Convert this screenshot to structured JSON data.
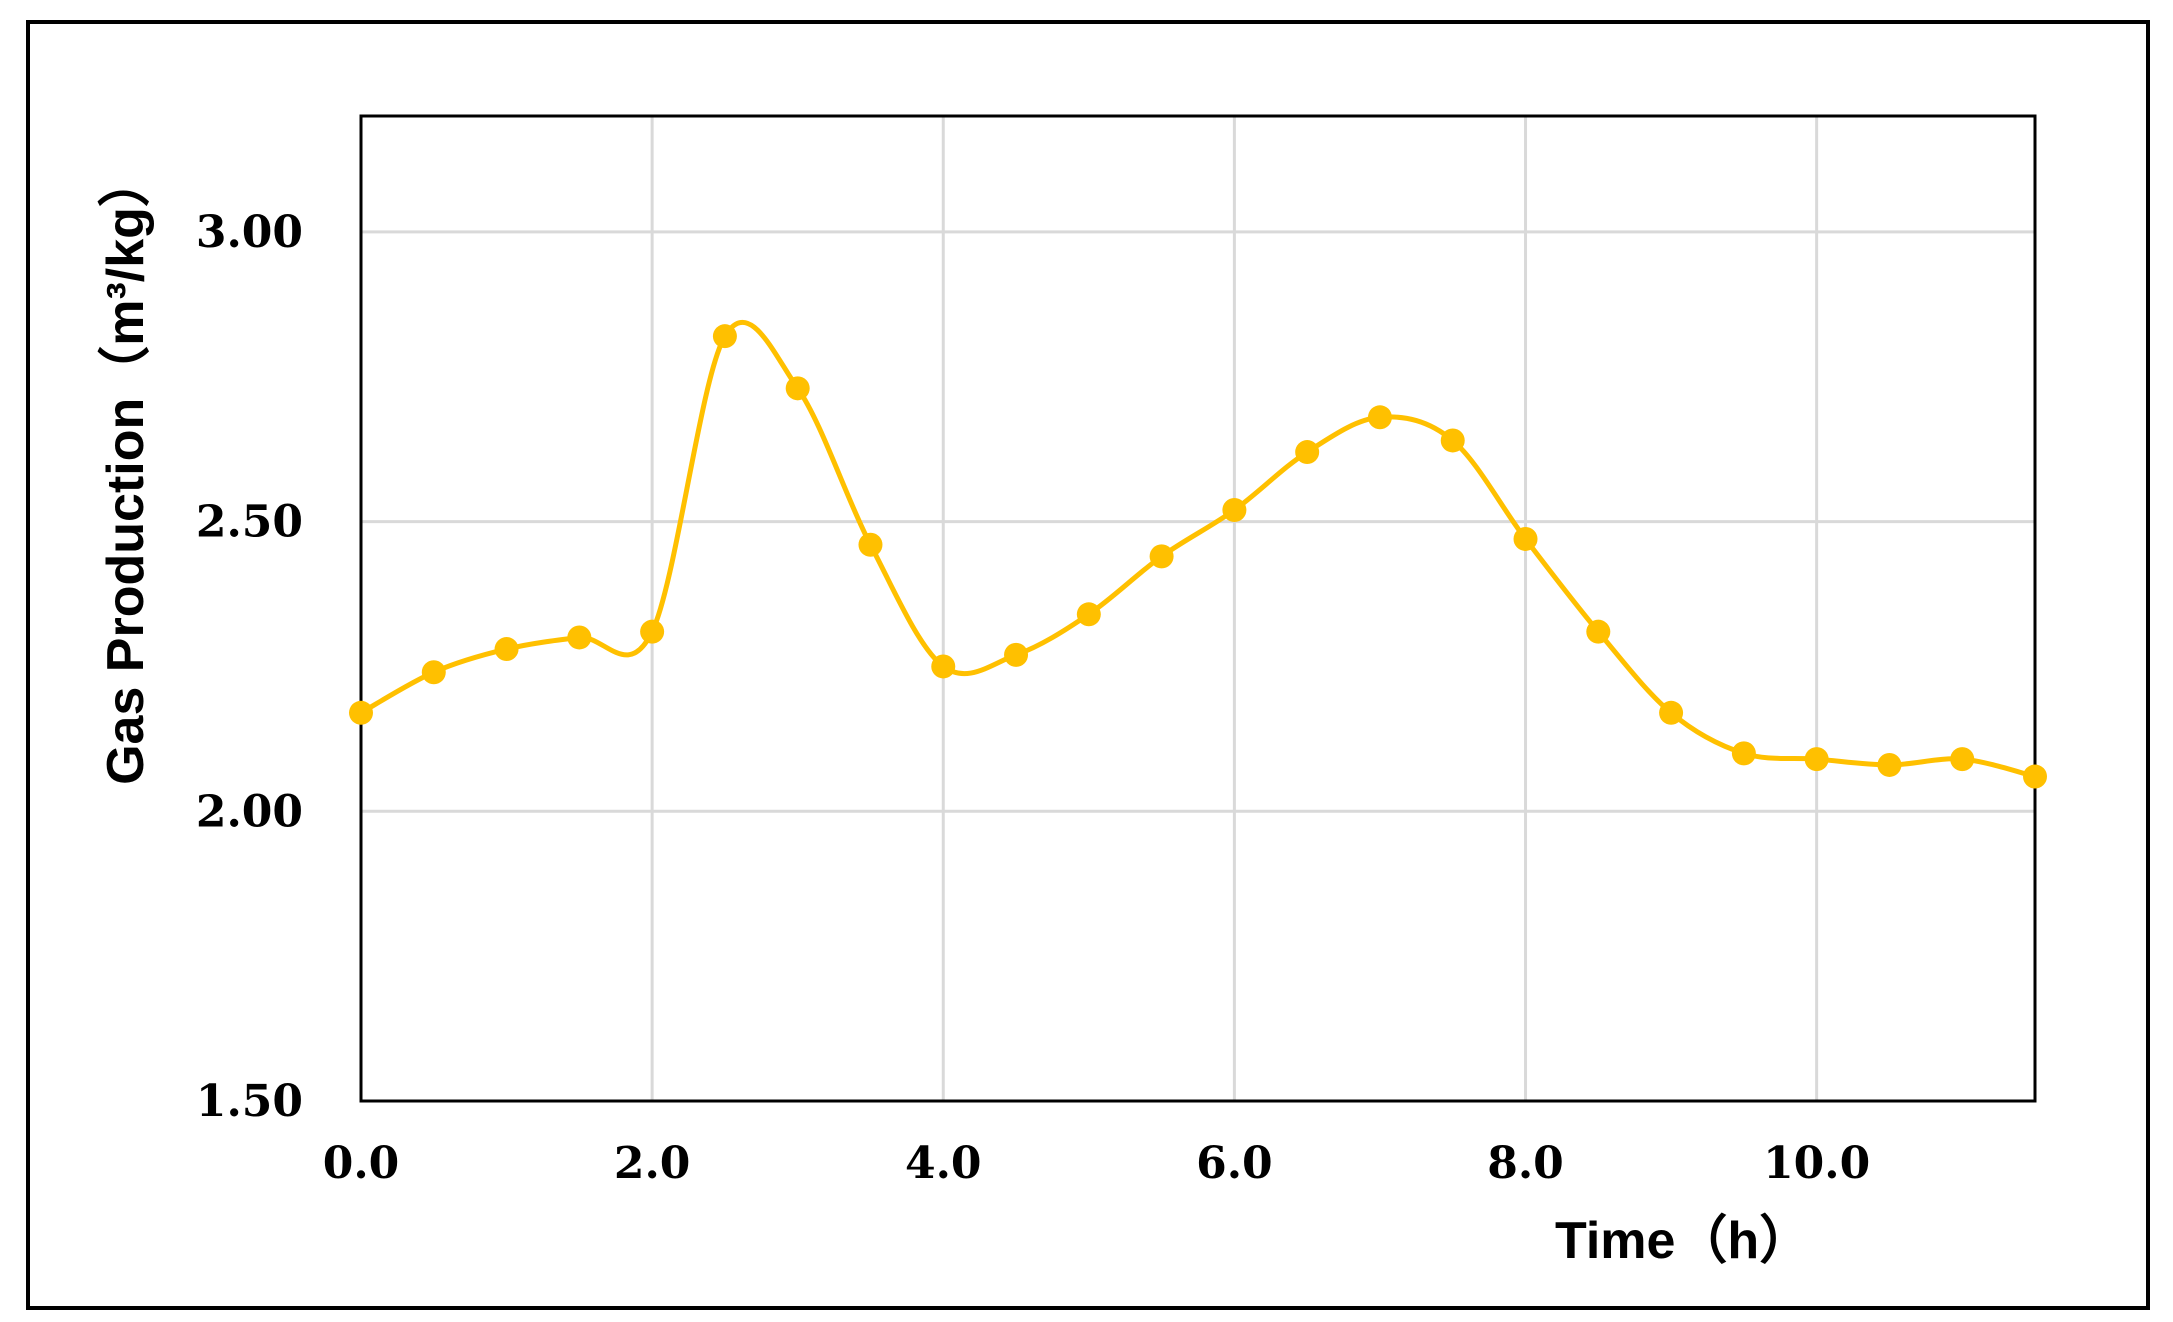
{
  "chart_data": {
    "type": "line",
    "title": "",
    "xlabel": "Time（h）",
    "ylabel": "Gas Production（m³/kg）",
    "xlim": [
      0,
      11.5
    ],
    "ylim": [
      1.5,
      3.2
    ],
    "x_ticks": [
      0,
      2,
      4,
      6,
      8,
      10
    ],
    "x_tick_labels": [
      "0.0",
      "2.0",
      "4.0",
      "6.0",
      "8.0",
      "10.0"
    ],
    "y_ticks": [
      1.5,
      2.0,
      2.5,
      3.0
    ],
    "y_tick_labels": [
      "1.50",
      "2.00",
      "2.50",
      "3.00"
    ],
    "grid": true,
    "legend": false,
    "series": [
      {
        "color": "#FFC000",
        "marker": "circle",
        "smooth": true,
        "x": [
          0,
          0.5,
          1.0,
          1.5,
          2.0,
          2.5,
          3.0,
          3.5,
          4.0,
          4.5,
          5.0,
          5.5,
          6.0,
          6.5,
          7.0,
          7.5,
          8.0,
          8.5,
          9.0,
          9.5,
          10.0,
          10.5,
          11.0,
          11.5
        ],
        "y": [
          2.17,
          2.24,
          2.28,
          2.3,
          2.31,
          2.82,
          2.73,
          2.46,
          2.25,
          2.27,
          2.34,
          2.44,
          2.52,
          2.62,
          2.68,
          2.64,
          2.47,
          2.31,
          2.17,
          2.1,
          2.09,
          2.08,
          2.09,
          2.06
        ]
      }
    ]
  }
}
